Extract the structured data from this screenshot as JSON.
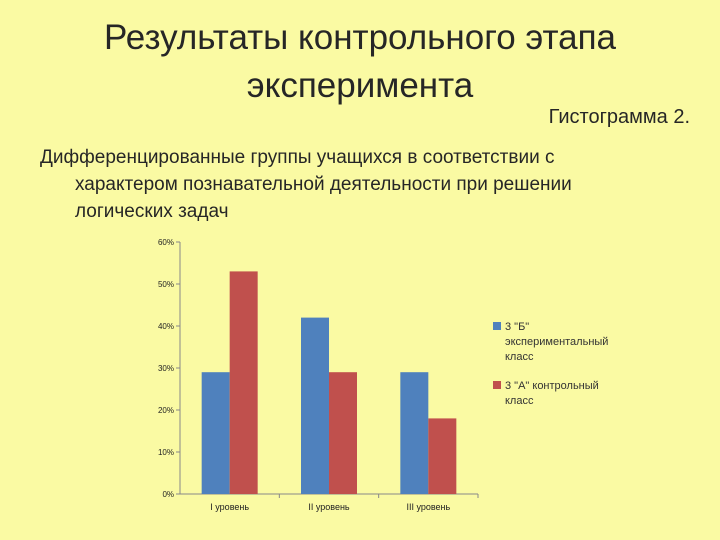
{
  "title_lines": [
    "Результаты контрольного этапа",
    "эксперимента"
  ],
  "histogram_label": "Гистограмма 2.",
  "description_lines": [
    "Дифференцированные группы учащихся в соответствии с",
    "характером познавательной деятельности при решении",
    "логических задач"
  ],
  "colors": {
    "background": "#fafaa3",
    "series1": "#4f81bd",
    "series2": "#c0504d"
  },
  "chart_data": {
    "type": "bar",
    "categories": [
      "I уровень",
      "II уровень",
      "III уровень"
    ],
    "series": [
      {
        "name": "3 \"Б\" экспериментальный класс",
        "legend_lines": [
          "3 \"Б\"",
          "экспериментальный",
          "класс"
        ],
        "values": [
          29,
          42,
          29
        ]
      },
      {
        "name": "3 \"А\" контрольный класс",
        "legend_lines": [
          "3 \"А\" контрольный",
          "класс"
        ],
        "values": [
          53,
          29,
          18
        ]
      }
    ],
    "ylim": [
      0,
      60
    ],
    "yticks": [
      "0%",
      "10%",
      "20%",
      "30%",
      "40%",
      "50%",
      "60%"
    ],
    "legend": "right",
    "grid": false
  }
}
